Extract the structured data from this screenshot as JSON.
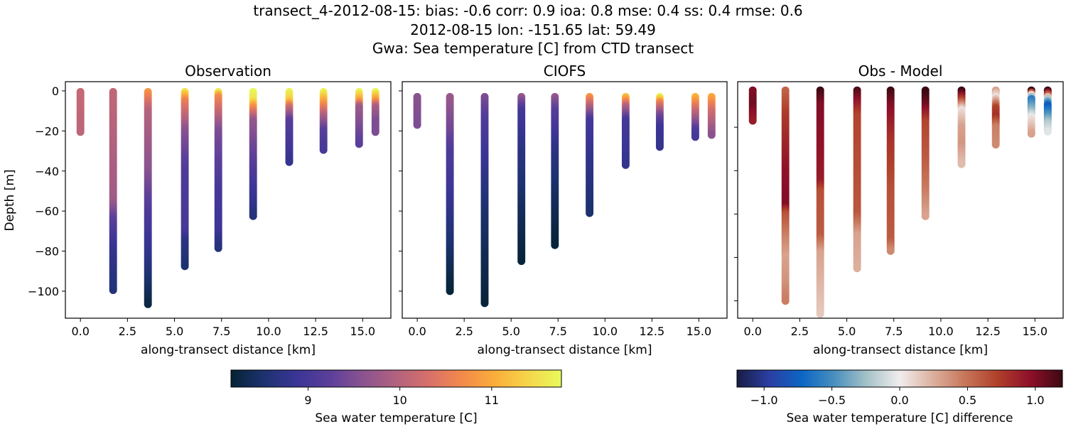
{
  "suptitle": [
    "transect_4-2012-08-15: bias: -0.6  corr: 0.9  ioa: 0.8  mse: 0.4  ss: 0.4  rmse: 0.6",
    "2012-08-15 lon: -151.65 lat: 59.49",
    "Gwa: Sea temperature [C] from CTD transect"
  ],
  "chart_data": {
    "type": "scatter",
    "colorbars": [
      {
        "label": "Sea water temperature [C]",
        "vmin": 8.16,
        "vmax": 11.76,
        "ticks": [
          9,
          10,
          11
        ],
        "ticklabels": [
          "9",
          "10",
          "11"
        ],
        "colormap": [
          "#042333",
          "#1d3270",
          "#3b3596",
          "#5c3f9a",
          "#8a5390",
          "#b2627e",
          "#d8706a",
          "#f38a4a",
          "#fbae3b",
          "#f5d64a",
          "#e8fa5b"
        ]
      },
      {
        "label": "Sea water temperature [C] difference",
        "vmin": -1.2,
        "vmax": 1.2,
        "ticks": [
          -1.0,
          -0.5,
          0.0,
          0.5,
          1.0
        ],
        "ticklabels": [
          "−1.0",
          "−0.5",
          "0.0",
          "0.5",
          "1.0"
        ],
        "colormap": [
          "#181c43",
          "#2b3fa4",
          "#0c66c4",
          "#4a90be",
          "#a6c2c8",
          "#f1eded",
          "#ddb1a0",
          "#c7765a",
          "#b0402a",
          "#8e1029",
          "#3c0912"
        ]
      }
    ],
    "panels": [
      {
        "title": "Observation",
        "xlabel": "along-transect distance [km]",
        "ylabel": "Depth [m]",
        "colorbar": 0,
        "xlim": [
          -0.8,
          16.5
        ],
        "ylim": [
          -113.5,
          4.6
        ],
        "xticks": [
          0,
          2.5,
          5,
          7.5,
          10,
          12.5,
          15
        ],
        "xticklabels": [
          "0.0",
          "2.5",
          "5.0",
          "7.5",
          "10.0",
          "12.5",
          "15.0"
        ],
        "yticks": [
          0,
          -20,
          -40,
          -60,
          -80,
          -100
        ],
        "yticklabels": [
          "0",
          "−20",
          "−40",
          "−60",
          "−80",
          "−100"
        ],
        "stations": [
          {
            "x": 0.0,
            "profile": [
              [
                -0.5,
                10.15
              ],
              [
                -21,
                10.05
              ]
            ]
          },
          {
            "x": 1.74,
            "profile": [
              [
                -0.5,
                10.1
              ],
              [
                -55,
                9.8
              ],
              [
                -65,
                9.2
              ],
              [
                -80,
                8.8
              ],
              [
                -100,
                8.6
              ]
            ]
          },
          {
            "x": 3.59,
            "profile": [
              [
                -0.5,
                10.8
              ],
              [
                -10,
                10.0
              ],
              [
                -40,
                9.6
              ],
              [
                -60,
                9.1
              ],
              [
                -80,
                8.8
              ],
              [
                -107,
                8.25
              ]
            ]
          },
          {
            "x": 5.55,
            "profile": [
              [
                -0.5,
                11.5
              ],
              [
                -5,
                10.6
              ],
              [
                -20,
                9.6
              ],
              [
                -40,
                9.1
              ],
              [
                -70,
                9.0
              ],
              [
                -75,
                8.7
              ],
              [
                -88,
                8.5
              ]
            ]
          },
          {
            "x": 7.33,
            "profile": [
              [
                -0.5,
                11.6
              ],
              [
                -3,
                10.7
              ],
              [
                -20,
                9.5
              ],
              [
                -50,
                9.0
              ],
              [
                -70,
                8.9
              ],
              [
                -79,
                8.6
              ]
            ]
          },
          {
            "x": 9.18,
            "profile": [
              [
                -0.5,
                11.75
              ],
              [
                -5,
                11.5
              ],
              [
                -8,
                10.8
              ],
              [
                -15,
                9.7
              ],
              [
                -40,
                9.1
              ],
              [
                -55,
                8.8
              ],
              [
                -63,
                8.6
              ]
            ]
          },
          {
            "x": 11.1,
            "profile": [
              [
                -0.5,
                11.7
              ],
              [
                -5,
                11.3
              ],
              [
                -8,
                10.3
              ],
              [
                -15,
                9.2
              ],
              [
                -36,
                8.8
              ]
            ]
          },
          {
            "x": 12.92,
            "profile": [
              [
                -0.5,
                11.7
              ],
              [
                -5,
                11.0
              ],
              [
                -12,
                10.0
              ],
              [
                -20,
                9.2
              ],
              [
                -30,
                9.0
              ]
            ]
          },
          {
            "x": 14.81,
            "profile": [
              [
                -0.5,
                11.7
              ],
              [
                -5,
                10.9
              ],
              [
                -8,
                9.8
              ],
              [
                -27,
                9.2
              ]
            ]
          },
          {
            "x": 15.68,
            "profile": [
              [
                -0.5,
                11.7
              ],
              [
                -5,
                10.8
              ],
              [
                -8,
                9.9
              ],
              [
                -15,
                9.5
              ],
              [
                -21,
                9.5
              ]
            ]
          }
        ]
      },
      {
        "title": "CIOFS",
        "xlabel": "along-transect distance [km]",
        "ylabel": "",
        "colorbar": 0,
        "xlim": [
          -0.8,
          16.5
        ],
        "ylim": [
          -113.5,
          4.6
        ],
        "xticks": [
          0,
          2.5,
          5,
          7.5,
          10,
          12.5,
          15
        ],
        "xticklabels": [
          "0.0",
          "2.5",
          "5.0",
          "7.5",
          "10.0",
          "12.5",
          "15.0"
        ],
        "yticks": [
          0,
          -20,
          -40,
          -60,
          -80,
          -100
        ],
        "yticklabels": [],
        "stations": [
          {
            "x": 0.0,
            "profile": [
              [
                -3,
                9.6
              ],
              [
                -17,
                9.5
              ]
            ]
          },
          {
            "x": 1.74,
            "profile": [
              [
                -3,
                9.75
              ],
              [
                -20,
                9.4
              ],
              [
                -30,
                9.1
              ],
              [
                -50,
                8.9
              ],
              [
                -70,
                8.6
              ],
              [
                -100,
                8.2
              ]
            ]
          },
          {
            "x": 3.59,
            "profile": [
              [
                -3,
                9.5
              ],
              [
                -15,
                9.1
              ],
              [
                -30,
                8.9
              ],
              [
                -60,
                8.5
              ],
              [
                -106,
                8.2
              ]
            ]
          },
          {
            "x": 5.55,
            "profile": [
              [
                -3,
                9.7
              ],
              [
                -10,
                9.0
              ],
              [
                -30,
                8.7
              ],
              [
                -60,
                8.4
              ],
              [
                -85,
                8.2
              ]
            ]
          },
          {
            "x": 7.33,
            "profile": [
              [
                -3,
                9.7
              ],
              [
                -10,
                9.2
              ],
              [
                -30,
                8.7
              ],
              [
                -55,
                8.4
              ],
              [
                -77,
                8.2
              ]
            ]
          },
          {
            "x": 9.18,
            "profile": [
              [
                -3,
                10.8
              ],
              [
                -8,
                10.0
              ],
              [
                -15,
                9.0
              ],
              [
                -30,
                8.8
              ],
              [
                -61,
                8.5
              ]
            ]
          },
          {
            "x": 11.1,
            "profile": [
              [
                -3,
                11.2
              ],
              [
                -8,
                10.0
              ],
              [
                -15,
                9.0
              ],
              [
                -37,
                8.8
              ]
            ]
          },
          {
            "x": 12.92,
            "profile": [
              [
                -3,
                11.65
              ],
              [
                -6,
                10.6
              ],
              [
                -12,
                9.5
              ],
              [
                -18,
                8.9
              ],
              [
                -28,
                8.8
              ]
            ]
          },
          {
            "x": 14.81,
            "profile": [
              [
                -3,
                11.1
              ],
              [
                -10,
                10.2
              ],
              [
                -20,
                9.1
              ],
              [
                -23,
                9.0
              ]
            ]
          },
          {
            "x": 15.68,
            "profile": [
              [
                -3,
                11.0
              ],
              [
                -10,
                10.3
              ],
              [
                -22,
                9.6
              ]
            ]
          }
        ]
      },
      {
        "title": "Obs - Model",
        "xlabel": "along-transect distance [km]",
        "ylabel": "",
        "colorbar": 1,
        "xlim": [
          -0.8,
          16.5
        ],
        "ylim": [
          -108,
          1
        ],
        "xticks": [
          0,
          2.5,
          5,
          7.5,
          10,
          12.5,
          15
        ],
        "xticklabels": [
          "0.0",
          "2.5",
          "5.0",
          "7.5",
          "10.0",
          "12.5",
          "15.0"
        ],
        "yticks": [
          -20,
          -40,
          -60,
          -80,
          -100
        ],
        "yticklabels": [],
        "stations": [
          {
            "x": 0.0,
            "profile": [
              [
                -3,
                1.0
              ],
              [
                -10,
                1.05
              ],
              [
                -17,
                0.9
              ]
            ]
          },
          {
            "x": 1.74,
            "profile": [
              [
                -3,
                0.55
              ],
              [
                -15,
                0.75
              ],
              [
                -40,
                0.95
              ],
              [
                -56,
                1.0
              ],
              [
                -60,
                0.65
              ],
              [
                -70,
                0.45
              ],
              [
                -80,
                0.3
              ],
              [
                -90,
                0.35
              ],
              [
                -100,
                0.45
              ]
            ]
          },
          {
            "x": 3.59,
            "profile": [
              [
                -3,
                1.2
              ],
              [
                -10,
                1.0
              ],
              [
                -30,
                0.95
              ],
              [
                -45,
                0.9
              ],
              [
                -50,
                0.65
              ],
              [
                -70,
                0.6
              ],
              [
                -78,
                0.3
              ],
              [
                -106,
                0.15
              ]
            ]
          },
          {
            "x": 5.55,
            "profile": [
              [
                -3,
                1.15
              ],
              [
                -8,
                0.95
              ],
              [
                -15,
                0.7
              ],
              [
                -60,
                0.62
              ],
              [
                -70,
                0.3
              ],
              [
                -85,
                0.25
              ]
            ]
          },
          {
            "x": 7.33,
            "profile": [
              [
                -3,
                1.2
              ],
              [
                -10,
                1.0
              ],
              [
                -25,
                0.8
              ],
              [
                -50,
                0.65
              ],
              [
                -72,
                0.6
              ],
              [
                -77,
                0.4
              ]
            ]
          },
          {
            "x": 9.18,
            "profile": [
              [
                -3,
                1.25
              ],
              [
                -10,
                1.05
              ],
              [
                -18,
                0.7
              ],
              [
                -35,
                0.6
              ],
              [
                -50,
                0.45
              ],
              [
                -61,
                0.3
              ]
            ]
          },
          {
            "x": 11.1,
            "profile": [
              [
                -3,
                1.25
              ],
              [
                -7,
                0.75
              ],
              [
                -12,
                0.05
              ],
              [
                -20,
                0.3
              ],
              [
                -28,
                0.35
              ],
              [
                -37,
                0.2
              ]
            ]
          },
          {
            "x": 12.92,
            "profile": [
              [
                -3,
                0.3
              ],
              [
                -6,
                0.05
              ],
              [
                -11,
                0.7
              ],
              [
                -15,
                0.8
              ],
              [
                -20,
                0.45
              ],
              [
                -28,
                0.4
              ]
            ]
          },
          {
            "x": 14.81,
            "profile": [
              [
                -3,
                1.2
              ],
              [
                -5,
                0.1
              ],
              [
                -7,
                -0.6
              ],
              [
                -12,
                -0.3
              ],
              [
                -16,
                0.05
              ],
              [
                -23,
                0.3
              ]
            ]
          },
          {
            "x": 15.68,
            "profile": [
              [
                -3,
                1.2
              ],
              [
                -5,
                0.6
              ],
              [
                -7,
                -0.2
              ],
              [
                -10,
                -0.8
              ],
              [
                -14,
                -0.5
              ],
              [
                -18,
                -0.2
              ],
              [
                -22,
                -0.05
              ]
            ]
          }
        ]
      }
    ]
  }
}
